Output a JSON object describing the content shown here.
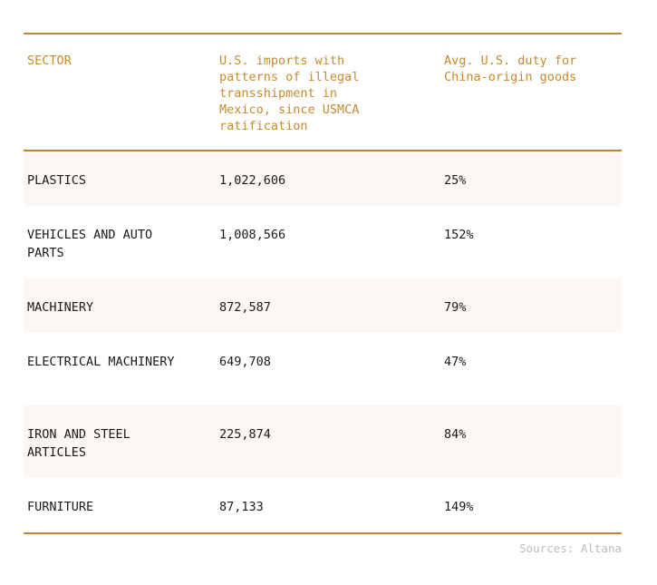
{
  "table": {
    "headers": [
      "SECTOR",
      "U.S. imports with patterns of illegal transshipment in Mexico, since USMCA ratification",
      "Avg. U.S. duty for China-origin goods"
    ],
    "rows": [
      {
        "sector": "PLASTICS",
        "imports": "1,022,606",
        "duty": "25%"
      },
      {
        "sector": "VEHICLES AND AUTO PARTS",
        "imports": "1,008,566",
        "duty": "152%"
      },
      {
        "sector": "MACHINERY",
        "imports": "872,587",
        "duty": "79%"
      },
      {
        "sector": "ELECTRICAL MACHINERY",
        "imports": "649,708",
        "duty": "47%"
      },
      {
        "sector": "IRON AND STEEL ARTICLES",
        "imports": "225,874",
        "duty": "84%"
      },
      {
        "sector": "FURNITURE",
        "imports": "87,133",
        "duty": "149%"
      }
    ]
  },
  "source": "Sources: Altana",
  "colors": {
    "accent": "#c58a2e",
    "rule": "#b88838",
    "shaded_row": "#fcf7f3",
    "text": "#1a1a1a",
    "source_text": "#bdbdbd"
  }
}
